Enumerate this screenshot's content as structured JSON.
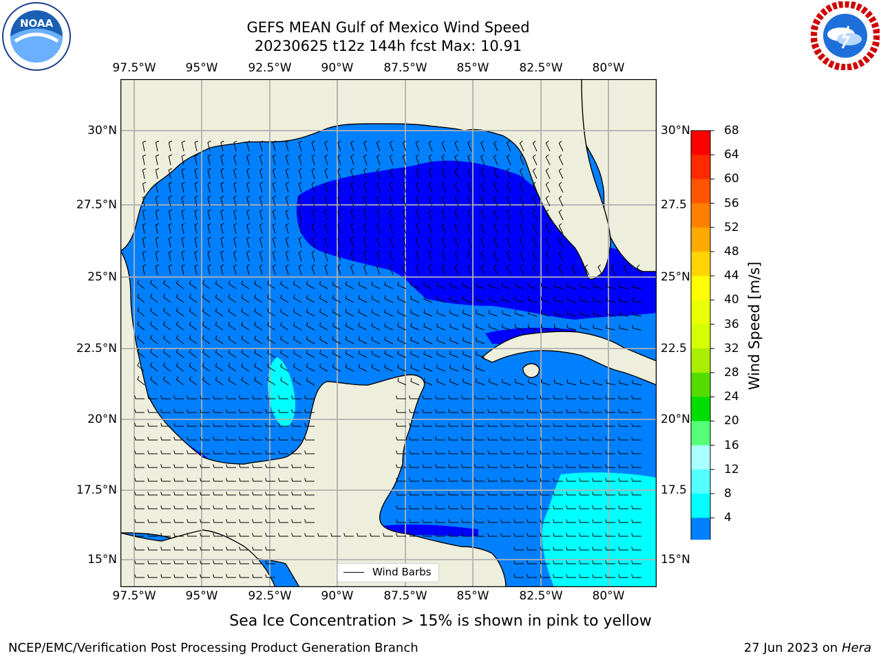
{
  "title_line1": "GEFS MEAN Gulf of Mexico Wind Speed",
  "title_line2": "20230625 t12z 144h fcst   Max: 10.91",
  "lon_labels": [
    "97.5°W",
    "95°W",
    "92.5°W",
    "90°W",
    "87.5°W",
    "85°W",
    "82.5°W",
    "80°W"
  ],
  "lat_labels": [
    "30°N",
    "27.5°N",
    "25°N",
    "22.5°N",
    "20°N",
    "17.5°N",
    "15°N"
  ],
  "lat_labels_right": [
    "30°N",
    "27.5",
    "25°N",
    "22.5",
    "20°N",
    "17.5",
    "15°N"
  ],
  "colorbar": {
    "title": "Wind Speed [m/s]",
    "levels": [
      "68",
      "64",
      "60",
      "56",
      "52",
      "48",
      "44",
      "40",
      "36",
      "32",
      "28",
      "24",
      "20",
      "16",
      "12",
      "8",
      "4"
    ],
    "colors": [
      "#ff0000",
      "#ff2a00",
      "#ff5500",
      "#ff8000",
      "#ffaa00",
      "#ffd400",
      "#ffff00",
      "#eaff00",
      "#d4ff00",
      "#aaee00",
      "#55dd00",
      "#00dd00",
      "#55ff77",
      "#aaffff",
      "#55ffff",
      "#00ffff",
      "#0080ff"
    ],
    "extend_color": "#0000ff"
  },
  "legend_label": "Wind Barbs",
  "caption": "Sea Ice Concentration > 15% is shown in pink to yellow",
  "footer_left": "NCEP/EMC/Verification Post Processing Product Generation Branch",
  "footer_right_date": "27 Jun 2023 on",
  "footer_right_machine": "Hera",
  "logo_left_text": "NOAA",
  "map_colors": {
    "land": "#eeeedd",
    "sea_4_8": "#0080ff",
    "sea_lt4": "#0000ff",
    "sea_8_12": "#00ffff"
  }
}
